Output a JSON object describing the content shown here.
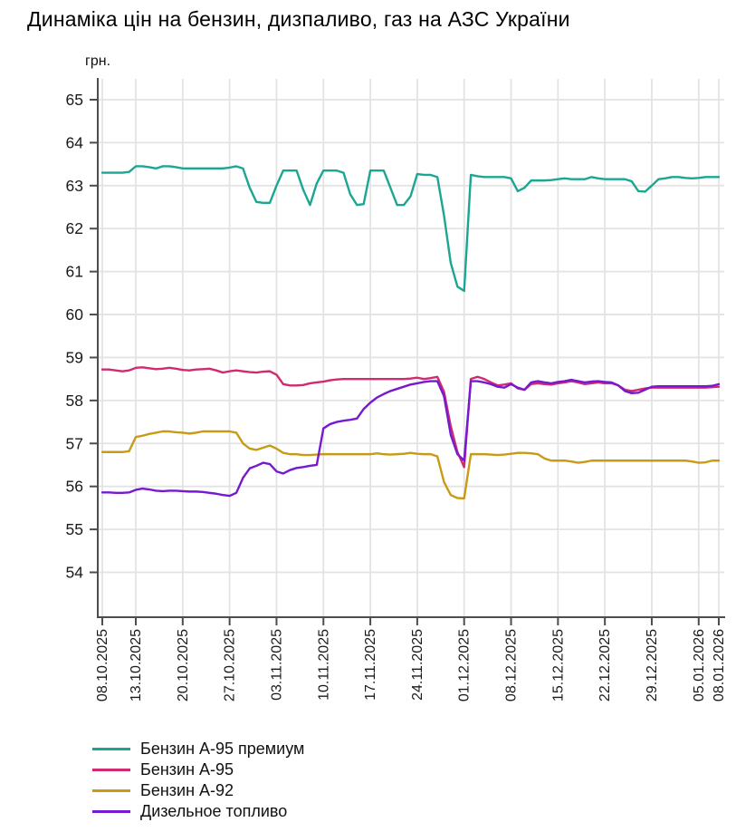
{
  "title": "Динаміка цін на бензин, дизпаливо, газ на АЗС України",
  "y_axis_unit": "грн.",
  "colors": {
    "grid": "#e3e3e3",
    "axis": "#4d4d4d",
    "tick_text": "#1a1a1a",
    "background": "#ffffff"
  },
  "chart_data": {
    "type": "line",
    "title": "Динаміка цін на бензин, дизпаливо, газ на АЗС України",
    "ylabel": "грн.",
    "x_step": "1 day",
    "x_start_date": "08.10.2025",
    "x_end_date": "08.01.2026",
    "x_range_days": [
      0,
      92
    ],
    "ylim": [
      53,
      65.5
    ],
    "grid": true,
    "legend_position": "bottom-left",
    "y_ticks": [
      54,
      55,
      56,
      57,
      58,
      59,
      60,
      61,
      62,
      63,
      64,
      65
    ],
    "x_ticks": [
      {
        "day": 0,
        "label": "08.10.2025"
      },
      {
        "day": 5,
        "label": "13.10.2025"
      },
      {
        "day": 12,
        "label": "20.10.2025"
      },
      {
        "day": 19,
        "label": "27.10.2025"
      },
      {
        "day": 26,
        "label": "03.11.2025"
      },
      {
        "day": 33,
        "label": "10.11.2025"
      },
      {
        "day": 40,
        "label": "17.11.2025"
      },
      {
        "day": 47,
        "label": "24.11.2025"
      },
      {
        "day": 54,
        "label": "01.12.2025"
      },
      {
        "day": 61,
        "label": "08.12.2025"
      },
      {
        "day": 68,
        "label": "15.12.2025"
      },
      {
        "day": 75,
        "label": "22.12.2025"
      },
      {
        "day": 82,
        "label": "29.12.2025"
      },
      {
        "day": 89,
        "label": "05.01.2026"
      },
      {
        "day": 92,
        "label": "08.01.2026"
      }
    ],
    "series": [
      {
        "name": "Бензин А-95 премиум",
        "color": "#1BA693",
        "values": [
          63.3,
          63.3,
          63.3,
          63.3,
          63.32,
          63.45,
          63.45,
          63.43,
          63.4,
          63.45,
          63.45,
          63.43,
          63.4,
          63.4,
          63.4,
          63.4,
          63.4,
          63.4,
          63.4,
          63.42,
          63.45,
          63.4,
          62.95,
          62.62,
          62.6,
          62.6,
          63.0,
          63.35,
          63.35,
          63.35,
          62.9,
          62.55,
          63.05,
          63.35,
          63.35,
          63.35,
          63.3,
          62.8,
          62.55,
          62.57,
          63.35,
          63.35,
          63.35,
          62.95,
          62.55,
          62.55,
          62.75,
          63.27,
          63.25,
          63.25,
          63.2,
          62.3,
          61.2,
          60.65,
          60.55,
          63.25,
          63.22,
          63.2,
          63.2,
          63.2,
          63.2,
          63.17,
          62.87,
          62.95,
          63.12,
          63.12,
          63.12,
          63.13,
          63.15,
          63.17,
          63.15,
          63.15,
          63.15,
          63.2,
          63.17,
          63.15,
          63.15,
          63.15,
          63.15,
          63.1,
          62.87,
          62.86,
          63.0,
          63.15,
          63.17,
          63.2,
          63.2,
          63.18,
          63.17,
          63.18,
          63.2,
          63.2,
          63.2
        ]
      },
      {
        "name": "Бензин А-95",
        "color": "#D12A70",
        "values": [
          58.72,
          58.72,
          58.7,
          58.68,
          58.7,
          58.76,
          58.77,
          58.75,
          58.73,
          58.74,
          58.76,
          58.74,
          58.71,
          58.7,
          58.72,
          58.73,
          58.74,
          58.7,
          58.65,
          58.68,
          58.7,
          58.68,
          58.66,
          58.65,
          58.67,
          58.68,
          58.6,
          58.38,
          58.35,
          58.35,
          58.36,
          58.4,
          58.42,
          58.44,
          58.47,
          58.49,
          58.5,
          58.5,
          58.5,
          58.5,
          58.5,
          58.5,
          58.5,
          58.5,
          58.5,
          58.5,
          58.51,
          58.53,
          58.5,
          58.52,
          58.55,
          58.2,
          57.4,
          56.8,
          56.45,
          58.5,
          58.55,
          58.5,
          58.42,
          58.35,
          58.37,
          58.4,
          58.28,
          58.25,
          58.38,
          58.4,
          58.38,
          58.37,
          58.4,
          58.42,
          58.45,
          58.42,
          58.38,
          58.4,
          58.42,
          58.4,
          58.4,
          58.35,
          58.25,
          58.22,
          58.25,
          58.28,
          58.3,
          58.3,
          58.3,
          58.3,
          58.3,
          58.3,
          58.3,
          58.3,
          58.3,
          58.31,
          58.32
        ]
      },
      {
        "name": "Бензин А-92",
        "color": "#C99A15",
        "values": [
          56.8,
          56.8,
          56.8,
          56.8,
          56.82,
          57.15,
          57.18,
          57.22,
          57.25,
          57.28,
          57.28,
          57.26,
          57.25,
          57.23,
          57.25,
          57.28,
          57.28,
          57.28,
          57.28,
          57.28,
          57.25,
          57.0,
          56.88,
          56.85,
          56.9,
          56.95,
          56.88,
          56.78,
          56.75,
          56.75,
          56.73,
          56.73,
          56.74,
          56.75,
          56.75,
          56.75,
          56.75,
          56.75,
          56.75,
          56.75,
          56.75,
          56.77,
          56.75,
          56.74,
          56.75,
          56.76,
          56.78,
          56.76,
          56.75,
          56.75,
          56.7,
          56.1,
          55.8,
          55.73,
          55.72,
          56.75,
          56.75,
          56.75,
          56.74,
          56.73,
          56.74,
          56.76,
          56.78,
          56.78,
          56.77,
          56.75,
          56.65,
          56.6,
          56.6,
          56.6,
          56.58,
          56.55,
          56.57,
          56.6,
          56.6,
          56.6,
          56.6,
          56.6,
          56.6,
          56.6,
          56.6,
          56.6,
          56.6,
          56.6,
          56.6,
          56.6,
          56.6,
          56.6,
          56.58,
          56.55,
          56.56,
          56.6,
          56.6
        ]
      },
      {
        "name": "Дизельное топливо",
        "color": "#7619D0",
        "values": [
          55.86,
          55.86,
          55.85,
          55.85,
          55.86,
          55.92,
          55.95,
          55.93,
          55.9,
          55.89,
          55.9,
          55.9,
          55.89,
          55.88,
          55.88,
          55.87,
          55.85,
          55.83,
          55.8,
          55.78,
          55.85,
          56.2,
          56.42,
          56.48,
          56.55,
          56.52,
          56.35,
          56.3,
          56.38,
          56.43,
          56.45,
          56.48,
          56.5,
          57.35,
          57.45,
          57.5,
          57.53,
          57.55,
          57.58,
          57.8,
          57.95,
          58.07,
          58.15,
          58.22,
          58.27,
          58.32,
          58.37,
          58.4,
          58.43,
          58.45,
          58.45,
          58.1,
          57.2,
          56.75,
          56.6,
          58.45,
          58.45,
          58.42,
          58.38,
          58.32,
          58.3,
          58.38,
          58.3,
          58.25,
          58.42,
          58.45,
          58.42,
          58.4,
          58.43,
          58.45,
          58.48,
          58.45,
          58.42,
          58.44,
          58.45,
          58.43,
          58.42,
          58.35,
          58.22,
          58.17,
          58.18,
          58.25,
          58.32,
          58.33,
          58.33,
          58.33,
          58.33,
          58.33,
          58.33,
          58.33,
          58.33,
          58.34,
          58.38
        ]
      }
    ]
  }
}
